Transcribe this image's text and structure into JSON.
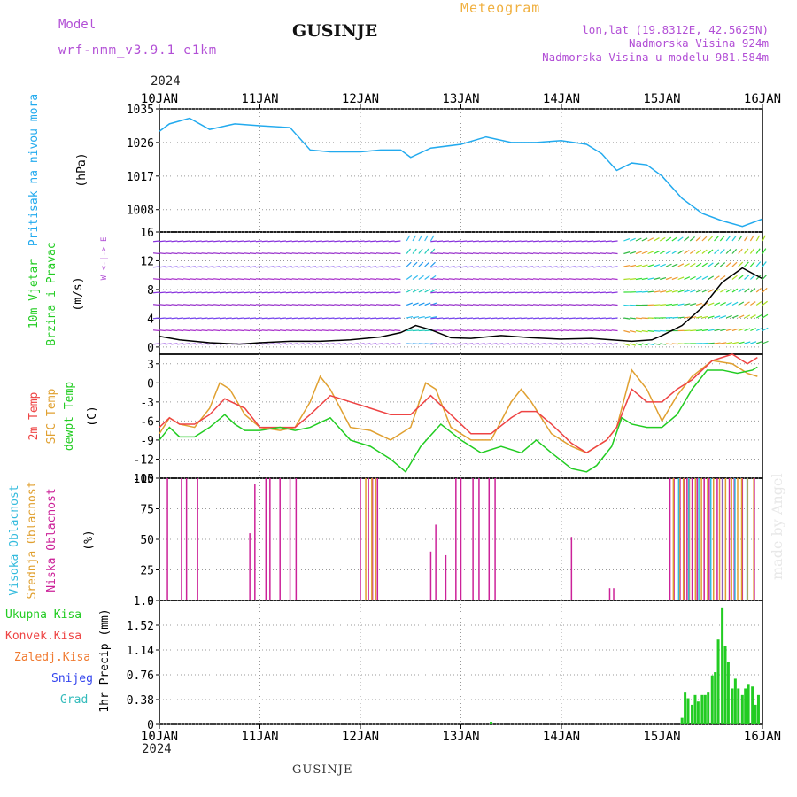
{
  "header": {
    "model_label": "Model",
    "model_name": "wrf-nmm_v3.9.1 e1km",
    "title": "GUSINJE",
    "meteogram": "Meteogram",
    "lonlat": "lon,lat (19.8312E, 42.5625N)",
    "elevation": "Nadmorska Visina 924m",
    "model_elevation": "Nadmorska Visina u modelu 981.584m",
    "year_top": "2024",
    "year_bottom": "2024",
    "bottom_title": "GUSINJE",
    "watermark": "made by Angel"
  },
  "colors": {
    "pressure": "#22aaee",
    "temp2m": "#ee4444",
    "sfc": "#e0a030",
    "dewpt": "#22cc22",
    "cloud_high": "#33bbdd",
    "cloud_mid": "#e0a030",
    "cloud_low": "#cc2299",
    "precip_total": "#22cc22"
  },
  "chart_data": [
    {
      "type": "line",
      "title": "Pritisak na nivou mora",
      "ylabel": "(hPa)",
      "ylim": [
        1002,
        1035
      ],
      "yticks": [
        1008,
        1017,
        1026,
        1035
      ],
      "x_ticks": [
        "10JAN",
        "11JAN",
        "12JAN",
        "13JAN",
        "14JAN",
        "15JAN",
        "16JAN"
      ],
      "x_days": [
        0,
        6
      ],
      "series": [
        {
          "name": "Pritisak na nivou mora",
          "x": [
            0,
            0.1,
            0.3,
            0.5,
            0.75,
            1.0,
            1.3,
            1.5,
            1.7,
            2.0,
            2.2,
            2.4,
            2.5,
            2.7,
            3.0,
            3.25,
            3.5,
            3.75,
            4.0,
            4.25,
            4.4,
            4.55,
            4.7,
            4.85,
            5.0,
            5.2,
            5.4,
            5.6,
            5.8,
            6.0
          ],
          "values": [
            1029,
            1031,
            1032.5,
            1029.5,
            1031,
            1030.5,
            1030,
            1024,
            1023.5,
            1023.5,
            1024,
            1024,
            1022,
            1024.5,
            1025.5,
            1027.5,
            1026,
            1026,
            1026.5,
            1025.5,
            1023,
            1018.5,
            1020.5,
            1020,
            1017,
            1011,
            1007,
            1005,
            1003.5,
            1005.5
          ]
        }
      ]
    },
    {
      "type": "line",
      "title": "10m Vjetar Brzina i Pravac",
      "ylabel": "(m/s)",
      "ylim": [
        -1,
        16
      ],
      "yticks": [
        0,
        4,
        8,
        12,
        16
      ],
      "compass": "W <-|-> E",
      "series": [
        {
          "name": "10m Vjetar",
          "x": [
            0,
            0.2,
            0.5,
            0.8,
            1.0,
            1.3,
            1.6,
            1.9,
            2.2,
            2.4,
            2.55,
            2.7,
            2.9,
            3.1,
            3.4,
            3.7,
            4.0,
            4.3,
            4.5,
            4.7,
            4.9,
            5.0,
            5.2,
            5.4,
            5.6,
            5.8,
            6.0
          ],
          "values": [
            1.5,
            1.0,
            0.6,
            0.4,
            0.6,
            0.8,
            0.8,
            1.0,
            1.4,
            2.0,
            3.0,
            2.4,
            1.3,
            1.2,
            1.6,
            1.3,
            1.1,
            1.2,
            1.0,
            0.8,
            1.0,
            1.6,
            3.0,
            5.5,
            9.0,
            11.0,
            9.5
          ]
        }
      ]
    },
    {
      "type": "line",
      "title": "2m Temp / SFC Temp / dewpt Temp",
      "ylabel": "(C)",
      "ylim": [
        -15,
        4.5
      ],
      "yticks": [
        -15,
        -12,
        -9,
        -6,
        -3,
        0,
        3
      ],
      "series": [
        {
          "name": "2m Temp",
          "x": [
            0,
            0.1,
            0.2,
            0.35,
            0.5,
            0.65,
            0.85,
            1.0,
            1.2,
            1.35,
            1.5,
            1.7,
            1.9,
            2.1,
            2.3,
            2.5,
            2.7,
            2.9,
            3.1,
            3.3,
            3.5,
            3.6,
            3.75,
            3.9,
            4.1,
            4.25,
            4.35,
            4.45,
            4.55,
            4.7,
            4.85,
            5.0,
            5.15,
            5.3,
            5.5,
            5.7,
            5.85,
            5.95
          ],
          "values": [
            -7,
            -5.5,
            -6.5,
            -6.5,
            -5,
            -2.5,
            -4,
            -7,
            -7,
            -7,
            -5,
            -2,
            -3,
            -4,
            -5,
            -5,
            -2,
            -5,
            -8,
            -8,
            -5.5,
            -4.5,
            -4.5,
            -6.5,
            -9.5,
            -11,
            -10,
            -9,
            -7,
            -1,
            -3,
            -3,
            -1,
            0.5,
            3.5,
            4.5,
            3,
            4
          ]
        },
        {
          "name": "SFC Temp",
          "x": [
            0,
            0.1,
            0.2,
            0.35,
            0.5,
            0.6,
            0.7,
            0.85,
            1.0,
            1.2,
            1.35,
            1.5,
            1.6,
            1.7,
            1.9,
            2.1,
            2.3,
            2.5,
            2.65,
            2.75,
            2.9,
            3.1,
            3.3,
            3.5,
            3.6,
            3.7,
            3.9,
            4.1,
            4.25,
            4.35,
            4.45,
            4.55,
            4.7,
            4.85,
            5.0,
            5.15,
            5.3,
            5.5,
            5.7,
            5.85,
            5.95
          ],
          "values": [
            -8,
            -5.5,
            -6.5,
            -7,
            -4,
            0,
            -1,
            -5,
            -7,
            -7.5,
            -7,
            -3,
            1,
            -1,
            -7,
            -7.5,
            -9,
            -7,
            0,
            -1,
            -7,
            -9,
            -9,
            -3,
            -1,
            -3,
            -8,
            -10,
            -11,
            -10,
            -9,
            -7,
            2,
            -1,
            -6,
            -2,
            1,
            3.5,
            3,
            1.5,
            1
          ]
        },
        {
          "name": "dewpt Temp",
          "x": [
            0,
            0.1,
            0.2,
            0.35,
            0.5,
            0.65,
            0.75,
            0.85,
            1.0,
            1.2,
            1.35,
            1.5,
            1.7,
            1.9,
            2.1,
            2.3,
            2.45,
            2.6,
            2.8,
            3.0,
            3.2,
            3.4,
            3.6,
            3.75,
            3.9,
            4.1,
            4.25,
            4.35,
            4.5,
            4.6,
            4.7,
            4.85,
            5.0,
            5.15,
            5.3,
            5.45,
            5.6,
            5.75,
            5.9,
            5.95
          ],
          "values": [
            -9,
            -7,
            -8.5,
            -8.5,
            -7,
            -5,
            -6.5,
            -7.5,
            -7.5,
            -7,
            -7.5,
            -7,
            -5.5,
            -9,
            -10,
            -12,
            -14,
            -10,
            -6.5,
            -9,
            -11,
            -10,
            -11,
            -9,
            -11,
            -13.5,
            -14,
            -13,
            -10,
            -5.5,
            -6.5,
            -7,
            -7,
            -5,
            -1,
            2,
            2,
            1.5,
            2,
            2.5
          ]
        }
      ]
    },
    {
      "type": "bar",
      "title": "Visoka Oblacnost / Srednja Oblacnost / Niska Oblacnost",
      "ylabel": "(%)",
      "ylim": [
        0,
        100
      ],
      "yticks": [
        0,
        25,
        50,
        75,
        100
      ],
      "series": [
        {
          "name": "Niska Oblacnost",
          "x": [
            0.08,
            0.22,
            0.27,
            0.38,
            0.9,
            0.95,
            1.06,
            1.1,
            1.2,
            1.3,
            1.36,
            2.0,
            2.08,
            2.12,
            2.17,
            2.7,
            2.75,
            2.85,
            2.95,
            3.0,
            3.12,
            3.18,
            3.28,
            3.34,
            4.1,
            4.48,
            4.52,
            5.08,
            5.12,
            5.18,
            5.22,
            5.25,
            5.3,
            5.35,
            5.42,
            5.47,
            5.55,
            5.6,
            5.67,
            5.72,
            5.8,
            5.85,
            5.92
          ],
          "values": [
            100,
            100,
            100,
            100,
            55,
            95,
            100,
            100,
            100,
            100,
            100,
            100,
            100,
            100,
            100,
            40,
            62,
            37,
            100,
            100,
            100,
            100,
            100,
            100,
            52,
            10,
            10,
            100,
            100,
            100,
            100,
            100,
            100,
            100,
            100,
            100,
            100,
            100,
            100,
            100,
            100,
            100,
            100
          ]
        },
        {
          "name": "Srednja Oblacnost",
          "x": [
            2.04,
            2.1,
            2.14,
            5.1,
            5.16,
            5.2,
            5.26,
            5.32,
            5.38,
            5.44,
            5.5,
            5.56,
            5.62,
            5.68,
            5.74,
            5.78,
            5.84,
            5.9
          ],
          "values": [
            100,
            100,
            100,
            100,
            100,
            100,
            100,
            100,
            100,
            100,
            100,
            100,
            100,
            100,
            100,
            100,
            100,
            100
          ]
        },
        {
          "name": "Visoka Oblacnost",
          "x": [
            5.14,
            5.24,
            5.34,
            5.46,
            5.58,
            5.7,
            5.82
          ],
          "values": [
            100,
            100,
            100,
            100,
            100,
            100,
            100
          ]
        }
      ]
    },
    {
      "type": "bar",
      "title": "1hr Precip",
      "ylabel": "(mm)",
      "ylim": [
        0,
        1.9
      ],
      "yticks": [
        0,
        0.38,
        0.76,
        1.14,
        1.52,
        1.9
      ],
      "legend": [
        "Ukupna Kisa",
        "Konvek.Kisa",
        "Zaledj.Kisa",
        "Snijeg",
        "Grad"
      ],
      "series": [
        {
          "name": "Ukupna Kisa",
          "x": [
            3.3,
            5.2,
            5.23,
            5.26,
            5.3,
            5.33,
            5.36,
            5.4,
            5.43,
            5.46,
            5.5,
            5.53,
            5.56,
            5.6,
            5.63,
            5.66,
            5.7,
            5.73,
            5.76,
            5.8,
            5.83,
            5.86,
            5.9,
            5.93,
            5.96
          ],
          "values": [
            0.04,
            0.1,
            0.5,
            0.4,
            0.3,
            0.45,
            0.35,
            0.45,
            0.45,
            0.5,
            0.75,
            0.8,
            1.3,
            1.78,
            1.2,
            0.95,
            0.55,
            0.7,
            0.55,
            0.45,
            0.55,
            0.62,
            0.58,
            0.3,
            0.45
          ]
        }
      ]
    }
  ]
}
